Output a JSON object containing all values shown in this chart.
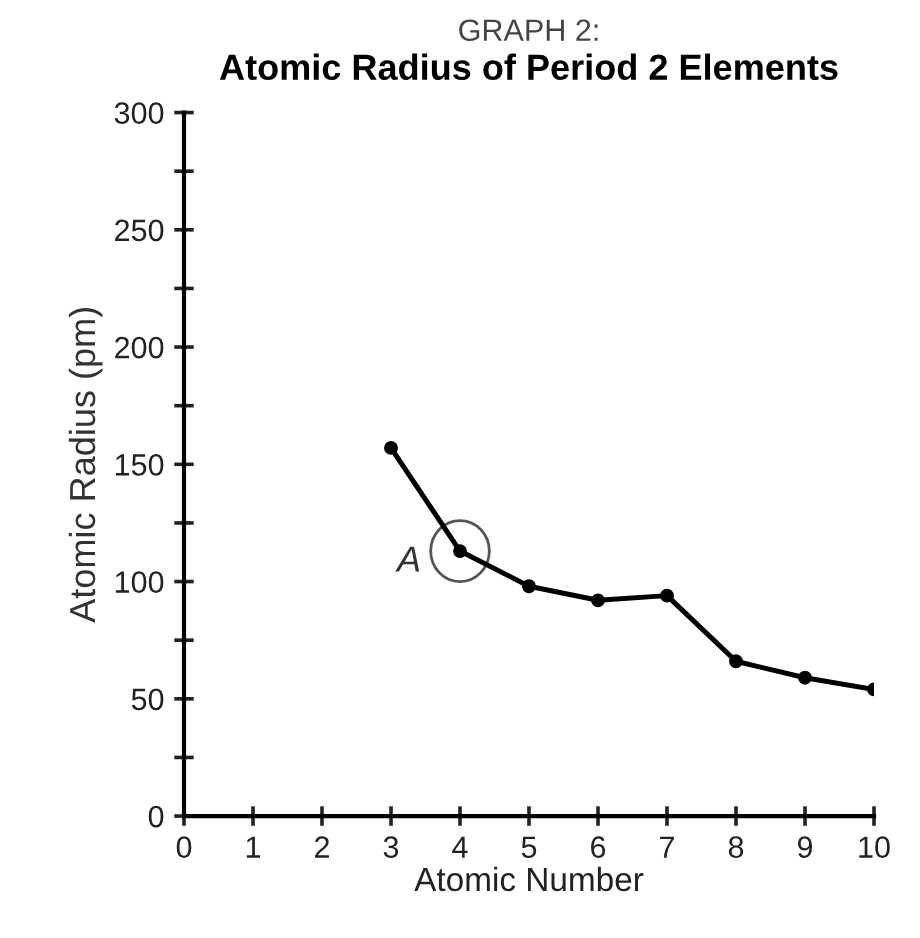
{
  "chart_data": {
    "type": "line",
    "title": "GRAPH 2:",
    "subtitle": "Atomic Radius of Period 2 Elements",
    "xlabel": "Atomic Number",
    "ylabel": "Atomic Radius (pm)",
    "x": [
      3,
      4,
      5,
      6,
      7,
      8,
      9,
      10
    ],
    "series": [
      {
        "color": "#000000",
        "values": [
          157,
          113,
          98,
          92,
          94,
          66,
          59,
          54
        ]
      }
    ],
    "xlim": [
      0,
      10
    ],
    "xticks": [
      0,
      1,
      2,
      3,
      4,
      5,
      6,
      7,
      8,
      9,
      10
    ],
    "ylim": [
      0,
      300
    ],
    "yticks": [
      0,
      {
        "value": 25,
        "label": null
      },
      50,
      {
        "value": 75,
        "label": null
      },
      100,
      {
        "value": 125,
        "label": null
      },
      150,
      {
        "value": 175,
        "label": null
      },
      200,
      {
        "value": 225,
        "label": null
      },
      250,
      {
        "value": 275,
        "label": null
      },
      300
    ],
    "annotations": [
      {
        "text": "A",
        "x": 4,
        "y": 113
      }
    ],
    "marker": "circle",
    "line_style": "solid",
    "grid": false,
    "legend": false
  }
}
